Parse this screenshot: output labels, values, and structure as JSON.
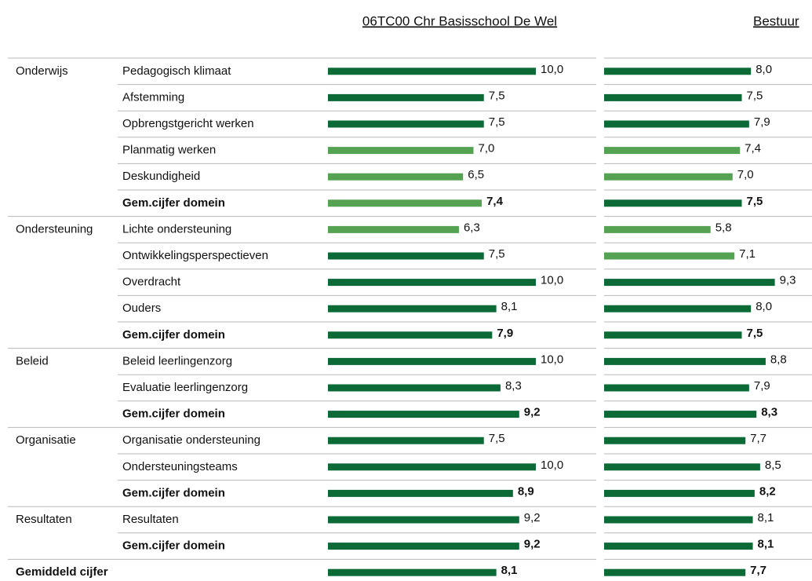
{
  "chart_data": {
    "type": "bar",
    "xlim": [
      0,
      10
    ],
    "groups": [
      "Onderwijs",
      null,
      null,
      null,
      null,
      null,
      "Ondersteuning",
      null,
      null,
      null,
      null,
      "Beleid",
      null,
      null,
      "Organisatie",
      null,
      null,
      "Resultaten",
      null,
      "Gemiddeld cijfer"
    ],
    "categories": [
      "Pedagogisch klimaat",
      "Afstemming",
      "Opbrengstgericht werken",
      "Planmatig werken",
      "Deskundigheid",
      "Gem.cijfer domein",
      "Lichte ondersteuning",
      "Ontwikkelingsperspectieven",
      "Overdracht",
      "Ouders",
      "Gem.cijfer domein",
      "Beleid leerlingenzorg",
      "Evaluatie leerlingenzorg",
      "Gem.cijfer domein",
      "Organisatie ondersteuning",
      "Ondersteuningsteams",
      "Gem.cijfer domein",
      "Resultaten",
      "Gem.cijfer domein",
      null
    ],
    "bold": [
      false,
      false,
      false,
      false,
      false,
      true,
      false,
      false,
      false,
      false,
      true,
      false,
      false,
      true,
      false,
      false,
      true,
      false,
      true,
      true
    ],
    "series": [
      {
        "name": "06TC00 Chr Basisschool De Wel",
        "values": [
          10.0,
          7.5,
          7.5,
          7.0,
          6.5,
          7.4,
          6.3,
          7.5,
          10.0,
          8.1,
          7.9,
          10.0,
          8.3,
          9.2,
          7.5,
          10.0,
          8.9,
          9.2,
          9.2,
          8.1
        ],
        "value_labels": [
          "10,0",
          "7,5",
          "7,5",
          "7,0",
          "6,5",
          "7,4",
          "6,3",
          "7,5",
          "10,0",
          "8,1",
          "7,9",
          "10,0",
          "8,3",
          "9,2",
          "7,5",
          "10,0",
          "8,9",
          "9,2",
          "9,2",
          "8,1"
        ],
        "colors": [
          "#0b6a36",
          "#0b6a36",
          "#0b6a36",
          "#55a253",
          "#55a253",
          "#55a253",
          "#55a253",
          "#0b6a36",
          "#0b6a36",
          "#0b6a36",
          "#0b6a36",
          "#0b6a36",
          "#0b6a36",
          "#0b6a36",
          "#0b6a36",
          "#0b6a36",
          "#0b6a36",
          "#0b6a36",
          "#0b6a36",
          "#0b6a36"
        ]
      },
      {
        "name": "Bestuur",
        "values": [
          8.0,
          7.5,
          7.9,
          7.4,
          7.0,
          7.5,
          5.8,
          7.1,
          9.3,
          8.0,
          7.5,
          8.8,
          7.9,
          8.3,
          7.7,
          8.5,
          8.2,
          8.1,
          8.1,
          7.7
        ],
        "value_labels": [
          "8,0",
          "7,5",
          "7,9",
          "7,4",
          "7,0",
          "7,5",
          "5,8",
          "7,1",
          "9,3",
          "8,0",
          "7,5",
          "8,8",
          "7,9",
          "8,3",
          "7,7",
          "8,5",
          "8,2",
          "8,1",
          "8,1",
          "7,7"
        ],
        "colors": [
          "#0b6a36",
          "#0b6a36",
          "#0b6a36",
          "#55a253",
          "#55a253",
          "#0b6a36",
          "#55a253",
          "#55a253",
          "#0b6a36",
          "#0b6a36",
          "#0b6a36",
          "#0b6a36",
          "#0b6a36",
          "#0b6a36",
          "#0b6a36",
          "#0b6a36",
          "#0b6a36",
          "#0b6a36",
          "#0b6a36",
          "#0b6a36"
        ]
      }
    ]
  }
}
